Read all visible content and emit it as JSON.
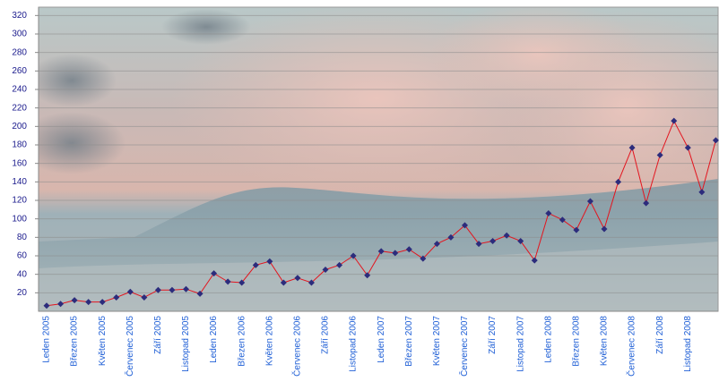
{
  "chart_data": {
    "type": "line",
    "categories": [
      "Leden 2005",
      null,
      "Březen 2005",
      null,
      "Květen 2005",
      null,
      "Červenec 2005",
      null,
      "Září 2005",
      null,
      "Listopad 2005",
      null,
      "Leden 2006",
      null,
      "Březen 2006",
      null,
      "Květen 2006",
      null,
      "Červenec 2006",
      null,
      "Září 2006",
      null,
      "Listopad 2006",
      null,
      "Leden 2007",
      null,
      "Březen 2007",
      null,
      "Květen 2007",
      null,
      "Červenec 2007",
      null,
      "Září 2007",
      null,
      "Listopad 2007",
      null,
      "Leden 2008",
      null,
      "Březen 2008",
      null,
      "Květen 2008",
      null,
      "Červenec 2008",
      null,
      "Září 2008",
      null,
      "Listopad 2008",
      null,
      null
    ],
    "values": [
      6,
      8,
      12,
      10,
      10,
      15,
      21,
      15,
      23,
      23,
      24,
      19,
      41,
      32,
      31,
      50,
      54,
      31,
      36,
      31,
      45,
      50,
      60,
      39,
      65,
      63,
      67,
      57,
      73,
      80,
      93,
      73,
      76,
      82,
      76,
      55,
      106,
      99,
      88,
      119,
      89,
      140,
      177,
      117,
      169,
      206,
      177,
      129,
      185
    ],
    "color": "#e3141e",
    "marker_color": "#2c2c7c",
    "ylim": [
      0,
      330
    ],
    "yticks": [
      20,
      40,
      60,
      80,
      100,
      120,
      140,
      160,
      180,
      200,
      220,
      240,
      260,
      280,
      300,
      320
    ],
    "grid": true
  }
}
